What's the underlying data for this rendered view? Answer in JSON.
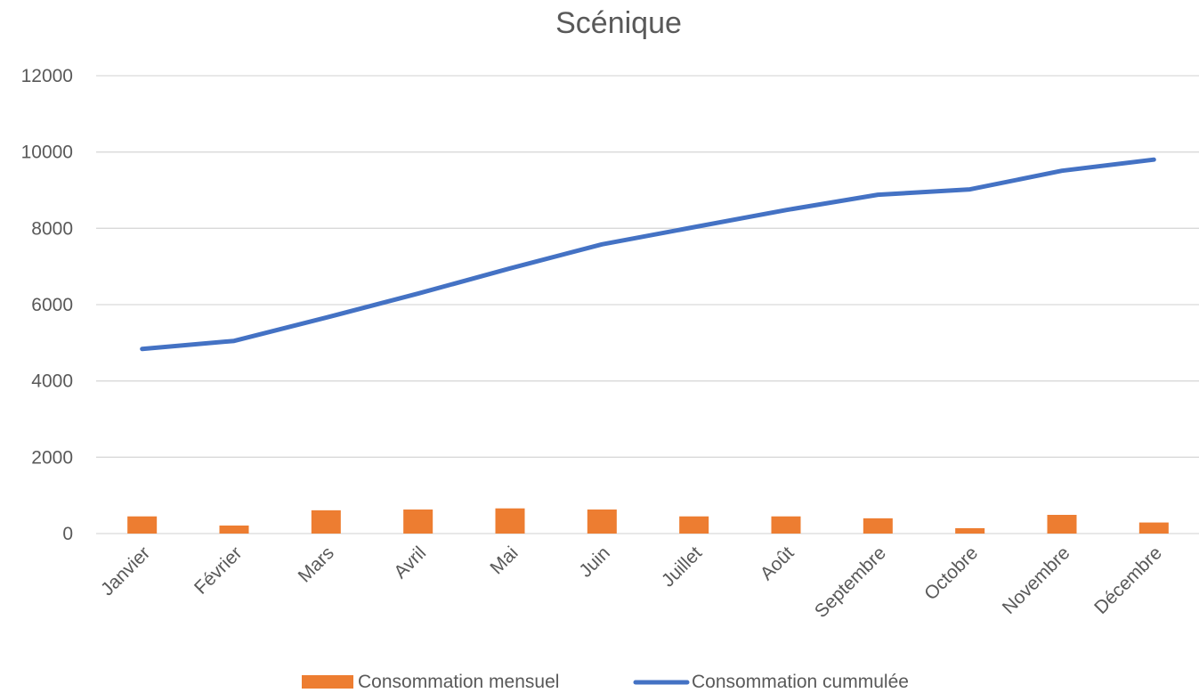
{
  "chart_data": {
    "type": "bar",
    "title": "Scénique",
    "xlabel": "",
    "ylabel": "",
    "categories": [
      "Janvier",
      "Février",
      "Mars",
      "Avril",
      "Mai",
      "Juin",
      "Juillet",
      "Août",
      "Septembre",
      "Octobre",
      "Novembre",
      "Décembre"
    ],
    "series": [
      {
        "name": "Consommation mensuel",
        "type": "bar",
        "color": "#ed7d31",
        "values": [
          450,
          210,
          610,
          630,
          660,
          630,
          450,
          450,
          400,
          140,
          490,
          290
        ]
      },
      {
        "name": "Consommation cummulée",
        "type": "line",
        "color": "#4472c4",
        "values": [
          4840,
          5050,
          5660,
          6290,
          6950,
          7580,
          8030,
          8480,
          8880,
          9020,
          9510,
          9800
        ]
      }
    ],
    "ylim": [
      0,
      12000
    ],
    "yticks": [
      0,
      2000,
      4000,
      6000,
      8000,
      10000,
      12000
    ],
    "grid": true,
    "legend_position": "bottom"
  }
}
